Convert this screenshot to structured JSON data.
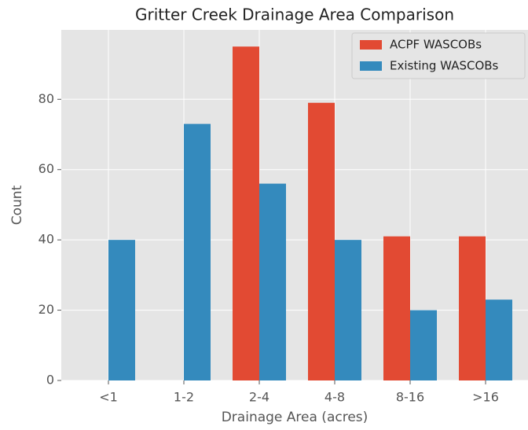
{
  "chart_data": {
    "type": "bar",
    "title": "Gritter Creek Drainage Area Comparison",
    "x_label": "Drainage Area (acres)",
    "y_label": "Count",
    "categories": [
      "<1",
      "1-2",
      "2-4",
      "4-8",
      "8-16",
      ">16"
    ],
    "series": [
      {
        "name": "ACPF WASCOBs",
        "color": "#E24A33",
        "values": [
          0,
          0,
          95,
          79,
          41,
          41
        ]
      },
      {
        "name": "Existing WASCOBs",
        "color": "#348ABD",
        "values": [
          40,
          73,
          56,
          40,
          20,
          23
        ]
      }
    ],
    "ylim": [
      0,
      99.75
    ],
    "yticks": [
      0,
      20,
      40,
      60,
      80
    ],
    "grid": true,
    "legend": "upper right"
  }
}
